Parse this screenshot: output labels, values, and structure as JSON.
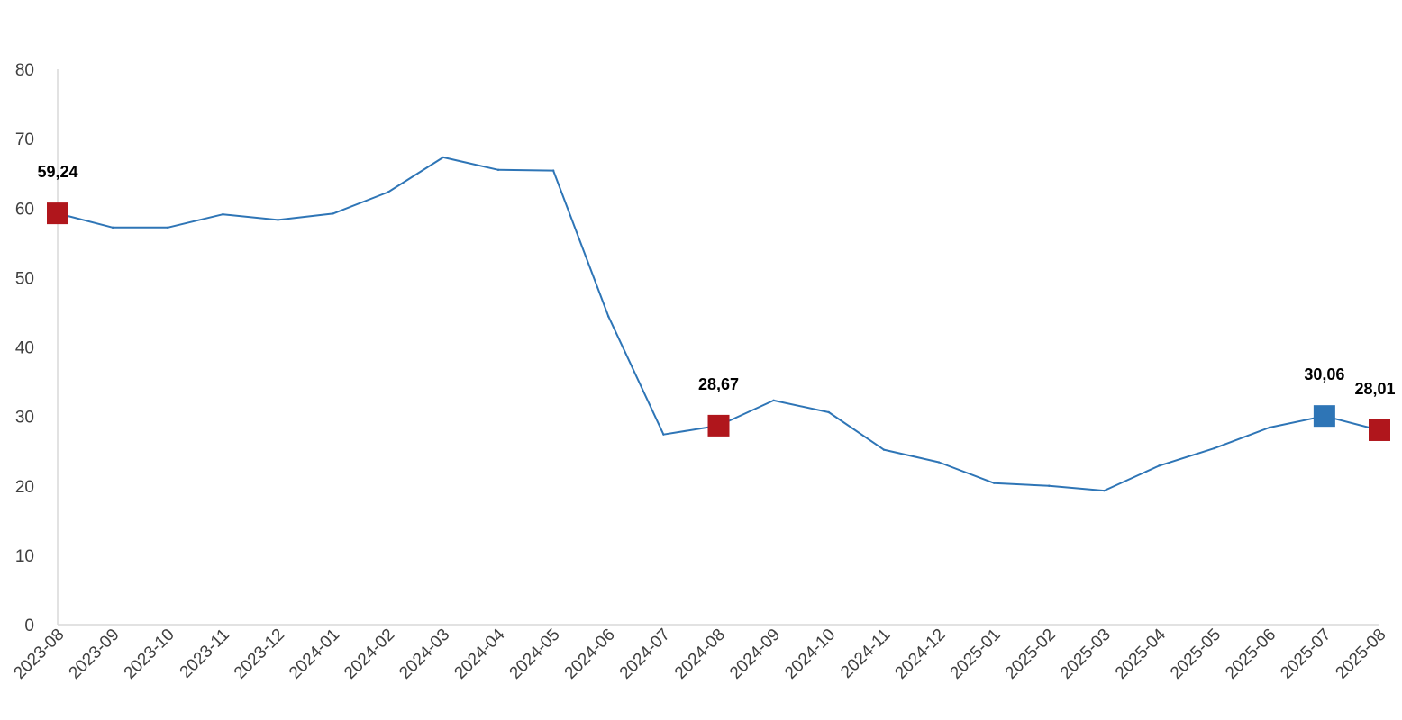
{
  "chart_data": {
    "type": "line",
    "title": "",
    "xlabel": "",
    "ylabel": "",
    "ylim": [
      0,
      80
    ],
    "yticks": [
      0,
      10,
      20,
      30,
      40,
      50,
      60,
      70,
      80
    ],
    "grid": false,
    "legend": "none",
    "categories": [
      "2023-08",
      "2023-09",
      "2023-10",
      "2023-11",
      "2023-12",
      "2024-01",
      "2024-02",
      "2024-03",
      "2024-04",
      "2024-05",
      "2024-06",
      "2024-07",
      "2024-08",
      "2024-09",
      "2024-10",
      "2024-11",
      "2024-12",
      "2025-01",
      "2025-02",
      "2025-03",
      "2025-04",
      "2025-05",
      "2025-06",
      "2025-07",
      "2025-08"
    ],
    "series": [
      {
        "line_color": "#2e75b6",
        "values": [
          59.24,
          57.2,
          57.2,
          59.1,
          58.3,
          59.2,
          62.3,
          67.3,
          65.5,
          65.4,
          44.4,
          27.4,
          28.67,
          32.3,
          30.6,
          25.2,
          23.4,
          20.4,
          20.0,
          19.3,
          22.9,
          25.4,
          28.4,
          30.06,
          28.01
        ]
      }
    ],
    "highlighted_points": [
      {
        "category": "2023-08",
        "value": 59.24,
        "label": "59,24",
        "color": "#b0161c"
      },
      {
        "category": "2024-08",
        "value": 28.67,
        "label": "28,67",
        "color": "#b0161c"
      },
      {
        "category": "2025-07",
        "value": 30.06,
        "label": "30,06",
        "color": "#2e75b6"
      },
      {
        "category": "2025-08",
        "value": 28.01,
        "label": "28,01",
        "color": "#b0161c"
      }
    ]
  }
}
